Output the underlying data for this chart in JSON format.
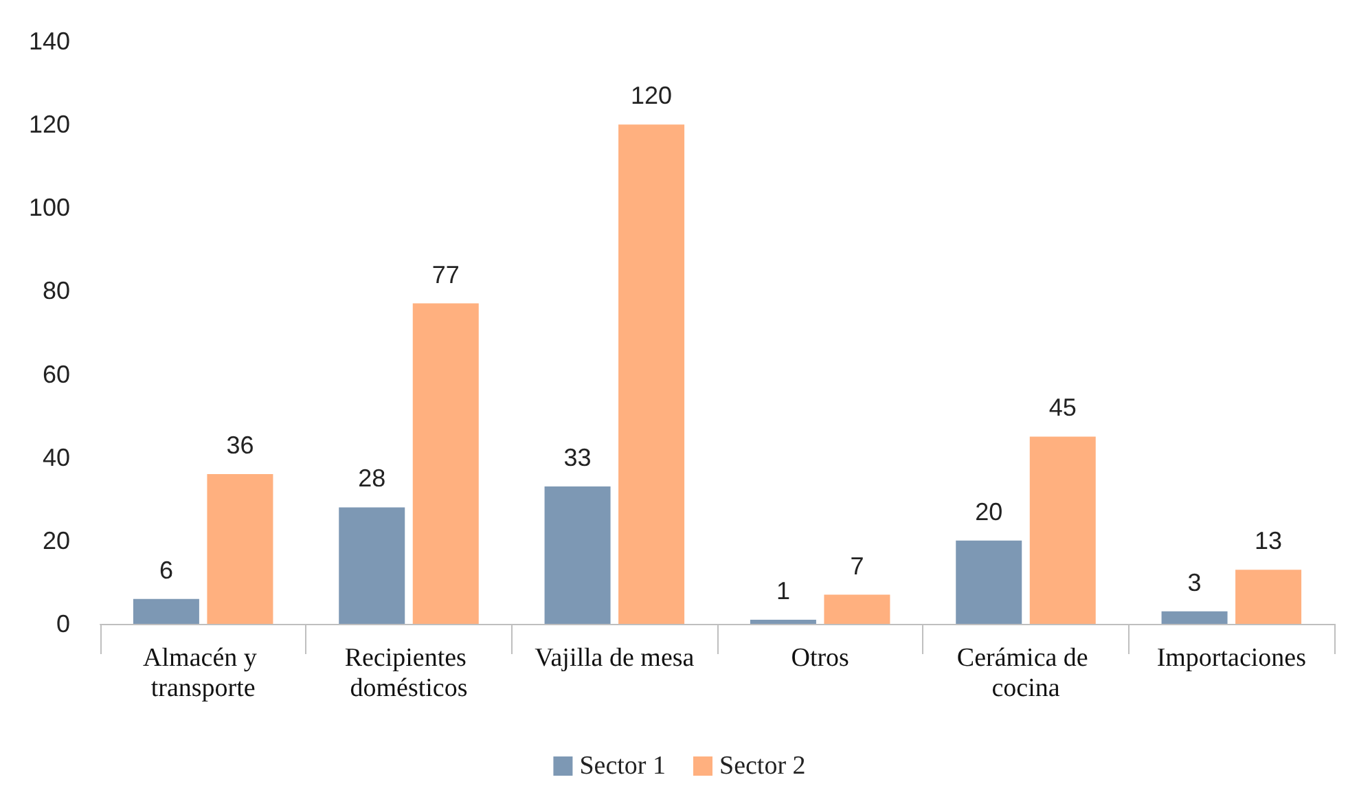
{
  "chart_data": {
    "type": "bar",
    "categories": [
      "Almacén y transporte",
      "Recipientes domésticos",
      "Vajilla de mesa",
      "Otros",
      "Cerámica de cocina",
      "Importaciones"
    ],
    "series": [
      {
        "name": "Sector 1",
        "color": "#7d98b4",
        "values": [
          6,
          28,
          33,
          1,
          20,
          3
        ]
      },
      {
        "name": "Sector 2",
        "color": "#ffb07f",
        "values": [
          36,
          77,
          120,
          7,
          45,
          13
        ]
      }
    ],
    "ylim": [
      0,
      140
    ],
    "yticks": [
      0,
      20,
      40,
      60,
      80,
      100,
      120,
      140
    ],
    "grid": false,
    "legend": "bottom",
    "data_labels": true
  }
}
